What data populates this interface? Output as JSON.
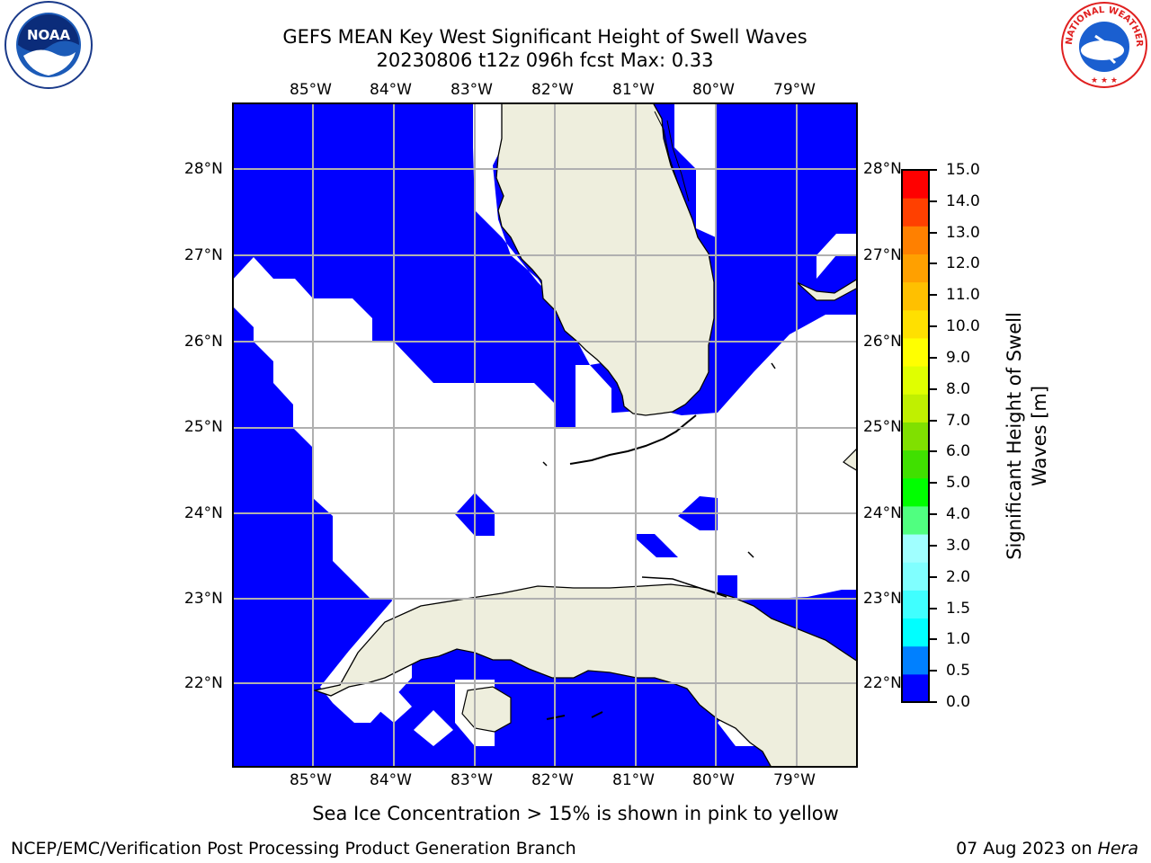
{
  "header": {
    "title_line1": "GEFS MEAN Key West Significant Height of Swell Waves",
    "title_line2": "20230806 t12z 096h fcst   Max: 0.33"
  },
  "logos": {
    "left": {
      "name": "noaa-logo",
      "text": "NOAA"
    },
    "right": {
      "name": "nws-logo",
      "text": "NATIONAL WEATHER SERVICE"
    }
  },
  "map": {
    "lon_labels": [
      "85°W",
      "84°W",
      "83°W",
      "82°W",
      "81°W",
      "80°W",
      "79°W"
    ],
    "lat_labels": [
      "28°N",
      "27°N",
      "26°N",
      "25°N",
      "24°N",
      "23°N",
      "22°N"
    ],
    "ocean_color": "#0000ff",
    "land_color": "#eeeedd",
    "grid_color": "#b0b0b0"
  },
  "colorbar": {
    "title_line1": "Significant Height of Swell",
    "title_line2": "Waves [m]",
    "labels": [
      "15.0",
      "14.0",
      "13.0",
      "12.0",
      "11.0",
      "10.0",
      "9.0",
      "8.0",
      "7.0",
      "6.0",
      "5.0",
      "4.0",
      "3.0",
      "2.0",
      "1.5",
      "1.0",
      "0.5",
      "0.0"
    ],
    "colors": [
      "#0000ff",
      "#0080ff",
      "#00ffff",
      "#40ffff",
      "#80ffff",
      "#a0ffff",
      "#50ff80",
      "#00ff00",
      "#40e000",
      "#80e000",
      "#c0f000",
      "#e0ff00",
      "#ffff00",
      "#ffe000",
      "#ffc000",
      "#ffa000",
      "#ff8000",
      "#ff4000",
      "#ff0000"
    ]
  },
  "note": "Sea Ice Concentration > 15% is shown in pink to yellow",
  "footer": {
    "left": "NCEP/EMC/Verification Post Processing Product Generation Branch",
    "date": "07 Aug 2023 on ",
    "machine": "Hera"
  }
}
